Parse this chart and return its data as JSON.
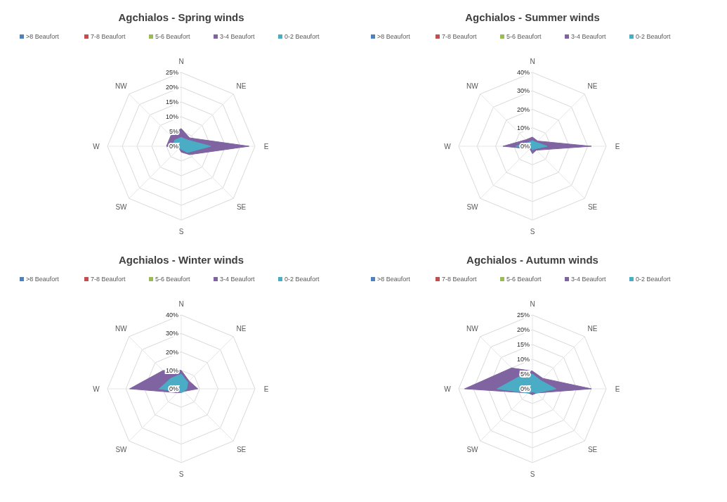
{
  "chart_data": [
    {
      "type": "radar",
      "title": "Agchialos - Spring winds",
      "categories": [
        "N",
        "NE",
        "E",
        "SE",
        "S",
        "SW",
        "W",
        "NW"
      ],
      "ylim": [
        0,
        25
      ],
      "yticks": [
        {
          "value": 0,
          "label": "0%"
        },
        {
          "value": 5,
          "label": "5%"
        },
        {
          "value": 10,
          "label": "10%"
        },
        {
          "value": 15,
          "label": "15%"
        },
        {
          "value": 20,
          "label": "20%"
        },
        {
          "value": 25,
          "label": "25%"
        }
      ],
      "grid": true,
      "legend": "top",
      "marker": "none",
      "series": [
        {
          "name": "3-4 Beaufort",
          "color": "#8064a2",
          "values": [
            6,
            4,
            23,
            4,
            2,
            1,
            5,
            5
          ]
        },
        {
          "name": "0-2 Beaufort",
          "color": "#4bacc6",
          "values": [
            3,
            3,
            10,
            3,
            1,
            1,
            3,
            3
          ]
        },
        {
          "name": ">8 Beaufort",
          "color": "#4f81bd",
          "values": [
            null,
            null,
            null,
            null,
            null,
            null,
            null,
            null
          ]
        },
        {
          "name": "7-8 Beaufort",
          "color": "#c0504d",
          "values": [
            null,
            null,
            null,
            null,
            null,
            null,
            null,
            null
          ]
        },
        {
          "name": "5-6 Beaufort",
          "color": "#9bbb59",
          "values": [
            null,
            null,
            null,
            null,
            null,
            null,
            null,
            null
          ]
        }
      ]
    },
    {
      "type": "radar",
      "title": "Agchialos - Summer winds",
      "categories": [
        "N",
        "NE",
        "E",
        "SE",
        "S",
        "SW",
        "W",
        "NW"
      ],
      "ylim": [
        0,
        40
      ],
      "yticks": [
        {
          "value": 0,
          "label": "0%"
        },
        {
          "value": 10,
          "label": "10%"
        },
        {
          "value": 20,
          "label": "20%"
        },
        {
          "value": 30,
          "label": "30%"
        },
        {
          "value": 40,
          "label": "40%"
        }
      ],
      "grid": true,
      "legend": "top",
      "marker": "none",
      "series": [
        {
          "name": "3-4 Beaufort",
          "color": "#8064a2",
          "values": [
            5,
            4,
            32,
            3,
            4,
            2,
            16,
            5
          ]
        },
        {
          "name": "0-2 Beaufort",
          "color": "#4bacc6",
          "values": [
            3,
            3,
            8,
            2,
            2,
            1,
            9,
            3
          ]
        },
        {
          "name": ">8 Beaufort",
          "color": "#4f81bd",
          "values": [
            null,
            null,
            null,
            null,
            null,
            null,
            null,
            null
          ]
        },
        {
          "name": "7-8 Beaufort",
          "color": "#c0504d",
          "values": [
            null,
            null,
            null,
            null,
            null,
            null,
            null,
            null
          ]
        },
        {
          "name": "5-6 Beaufort",
          "color": "#9bbb59",
          "values": [
            null,
            null,
            null,
            null,
            null,
            null,
            null,
            null
          ]
        }
      ]
    },
    {
      "type": "radar",
      "title": "Agchialos - Winter winds",
      "categories": [
        "N",
        "NE",
        "E",
        "SE",
        "S",
        "SW",
        "W",
        "NW"
      ],
      "ylim": [
        0,
        40
      ],
      "yticks": [
        {
          "value": 0,
          "label": "0%"
        },
        {
          "value": 10,
          "label": "10%"
        },
        {
          "value": 20,
          "label": "20%"
        },
        {
          "value": 30,
          "label": "30%"
        },
        {
          "value": 40,
          "label": "40%"
        }
      ],
      "grid": true,
      "legend": "top",
      "marker": "none",
      "series": [
        {
          "name": "3-4 Beaufort",
          "color": "#8064a2",
          "values": [
            10,
            6,
            9,
            2,
            2,
            3,
            28,
            14
          ]
        },
        {
          "name": "0-2 Beaufort",
          "color": "#4bacc6",
          "values": [
            8,
            5,
            3,
            2,
            2,
            2,
            12,
            8
          ]
        },
        {
          "name": ">8 Beaufort",
          "color": "#4f81bd",
          "values": [
            null,
            null,
            null,
            null,
            null,
            null,
            null,
            null
          ]
        },
        {
          "name": "7-8 Beaufort",
          "color": "#c0504d",
          "values": [
            null,
            null,
            null,
            null,
            null,
            null,
            null,
            null
          ]
        },
        {
          "name": "5-6 Beaufort",
          "color": "#9bbb59",
          "values": [
            null,
            null,
            null,
            null,
            null,
            null,
            null,
            null
          ]
        }
      ]
    },
    {
      "type": "radar",
      "title": "Agchialos - Autumn winds",
      "categories": [
        "N",
        "NE",
        "E",
        "SE",
        "S",
        "SW",
        "W",
        "NW"
      ],
      "ylim": [
        0,
        25
      ],
      "yticks": [
        {
          "value": 0,
          "label": "0%"
        },
        {
          "value": 5,
          "label": "5%"
        },
        {
          "value": 10,
          "label": "10%"
        },
        {
          "value": 15,
          "label": "15%"
        },
        {
          "value": 20,
          "label": "20%"
        },
        {
          "value": 25,
          "label": "25%"
        }
      ],
      "grid": true,
      "legend": "top",
      "marker": "none",
      "series": [
        {
          "name": "3-4 Beaufort",
          "color": "#8064a2",
          "values": [
            6,
            5,
            20,
            2,
            2,
            2,
            23,
            10
          ]
        },
        {
          "name": "0-2 Beaufort",
          "color": "#4bacc6",
          "values": [
            5,
            4,
            8,
            2,
            1,
            2,
            12,
            6
          ]
        },
        {
          "name": ">8 Beaufort",
          "color": "#4f81bd",
          "values": [
            null,
            null,
            null,
            null,
            null,
            null,
            null,
            null
          ]
        },
        {
          "name": "7-8 Beaufort",
          "color": "#c0504d",
          "values": [
            null,
            null,
            null,
            null,
            null,
            null,
            null,
            null
          ]
        },
        {
          "name": "5-6 Beaufort",
          "color": "#9bbb59",
          "values": [
            null,
            null,
            null,
            null,
            null,
            null,
            null,
            null
          ]
        }
      ]
    }
  ]
}
